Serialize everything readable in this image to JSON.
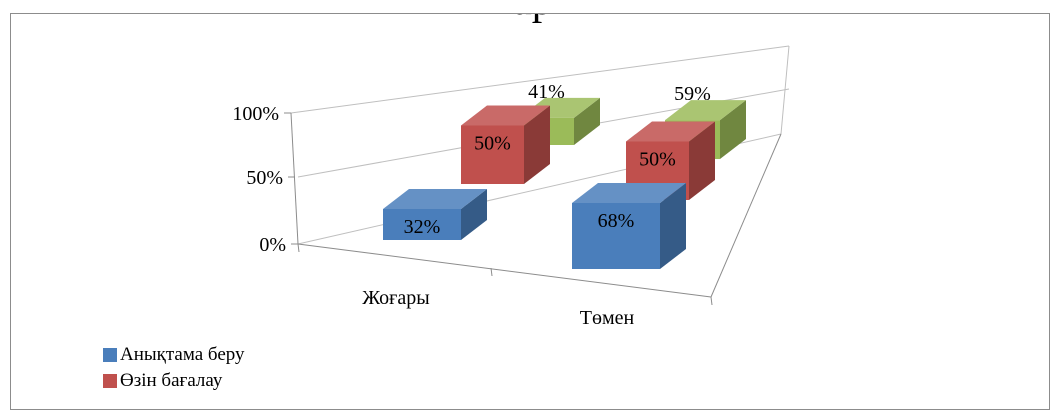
{
  "title": "Бар",
  "chart_data": {
    "type": "bar",
    "variant": "3d-column",
    "categories": [
      "Жоғары",
      "Төмен"
    ],
    "y_ticks": [
      "0%",
      "50%",
      "100%"
    ],
    "ylim": [
      0,
      100
    ],
    "grid": true,
    "legend_placement": "bottom-left",
    "series": [
      {
        "name": "Анықтама беру",
        "values": [
          32,
          68
        ],
        "labels": [
          "32%",
          "68%"
        ],
        "color": "#4a7ebb"
      },
      {
        "name": "Өзін бағалау",
        "values": [
          50,
          50
        ],
        "labels": [
          "50%",
          "50%"
        ],
        "color": "#c0504d"
      },
      {
        "name": "",
        "values": [
          41,
          59
        ],
        "labels": [
          "41%",
          "59%"
        ],
        "color": "#9bbb59"
      }
    ]
  }
}
